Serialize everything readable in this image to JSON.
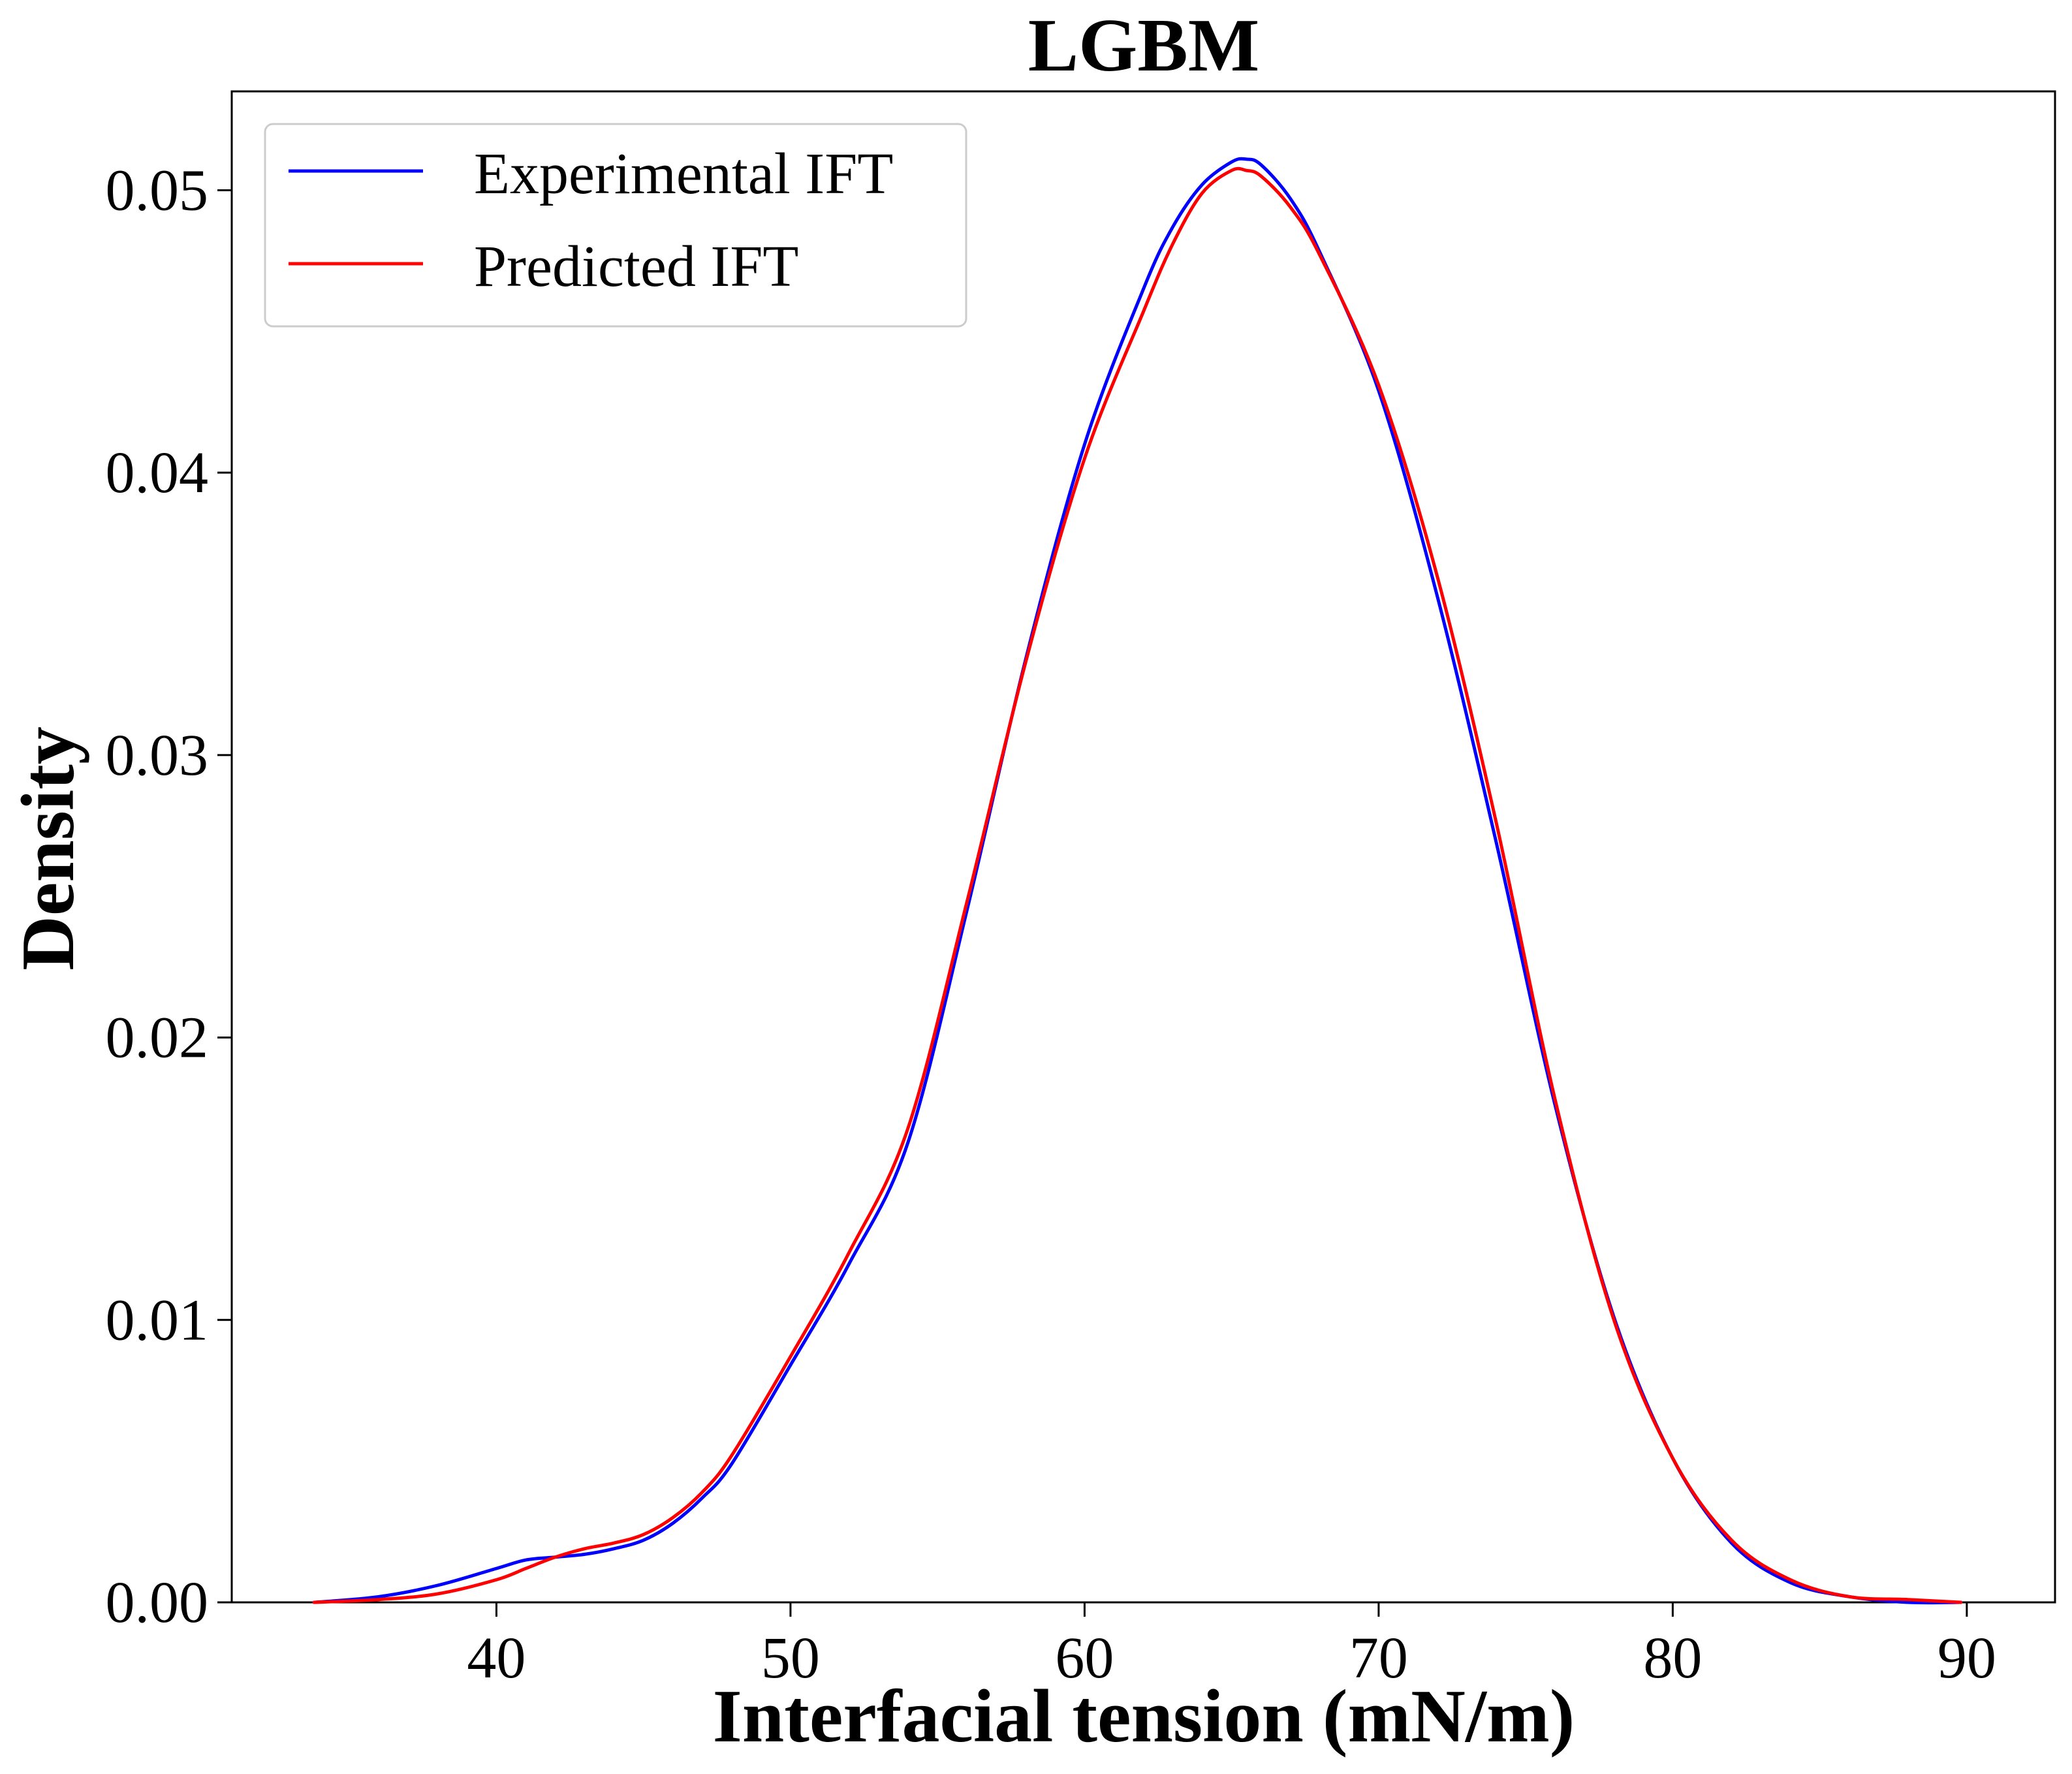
{
  "chart_data": {
    "type": "line",
    "title": "LGBM",
    "xlabel": "Interfacial tension (mN/m)",
    "ylabel": "Density",
    "xlim": [
      31,
      93
    ],
    "ylim": [
      0,
      0.0535
    ],
    "xticks": [
      40,
      50,
      60,
      70,
      80,
      90
    ],
    "yticks": [
      0.0,
      0.01,
      0.02,
      0.03,
      0.04,
      0.05
    ],
    "xtick_labels": [
      "40",
      "50",
      "60",
      "70",
      "80",
      "90"
    ],
    "ytick_labels": [
      "0.00",
      "0.01",
      "0.02",
      "0.03",
      "0.04",
      "0.05"
    ],
    "grid": false,
    "legend_position": "top-left",
    "series": [
      {
        "name": "Experimental IFT",
        "color": "#0000ff",
        "x": [
          33.8,
          36,
          38,
          40,
          41,
          42,
          43,
          44,
          45,
          46,
          47,
          48,
          50,
          52,
          54,
          56,
          58,
          60,
          62,
          63,
          64,
          65,
          65.5,
          66,
          67,
          68,
          70,
          72,
          74,
          76,
          78,
          80,
          82,
          84,
          86,
          88,
          89.8
        ],
        "y": [
          0.0,
          0.0002,
          0.0006,
          0.0012,
          0.0015,
          0.0016,
          0.0017,
          0.0019,
          0.0022,
          0.0028,
          0.0037,
          0.0049,
          0.0084,
          0.012,
          0.0163,
          0.0245,
          0.0334,
          0.041,
          0.0465,
          0.0487,
          0.0502,
          0.051,
          0.0511,
          0.0509,
          0.0497,
          0.0478,
          0.0429,
          0.0356,
          0.0269,
          0.0176,
          0.0101,
          0.0051,
          0.0021,
          0.0007,
          0.0002,
          0.0,
          0.0
        ]
      },
      {
        "name": "Predicted IFT",
        "color": "#ff0000",
        "x": [
          33.8,
          36,
          38,
          40,
          41,
          42,
          43,
          44,
          45,
          46,
          47,
          48,
          50,
          52,
          54,
          56,
          58,
          60,
          62,
          63,
          64,
          65,
          65.5,
          66,
          67,
          68,
          70,
          72,
          74,
          76,
          78,
          80,
          82,
          84,
          86,
          88,
          89.8
        ],
        "y": [
          0.0,
          0.0001,
          0.0003,
          0.0008,
          0.0012,
          0.0016,
          0.0019,
          0.0021,
          0.0024,
          0.003,
          0.0039,
          0.0052,
          0.0087,
          0.0124,
          0.0168,
          0.0248,
          0.0333,
          0.0405,
          0.0457,
          0.0481,
          0.0499,
          0.0507,
          0.0507,
          0.0505,
          0.0494,
          0.0477,
          0.0431,
          0.0363,
          0.0276,
          0.0178,
          0.01,
          0.0051,
          0.0022,
          0.0008,
          0.0002,
          0.0001,
          0.0
        ]
      }
    ]
  }
}
